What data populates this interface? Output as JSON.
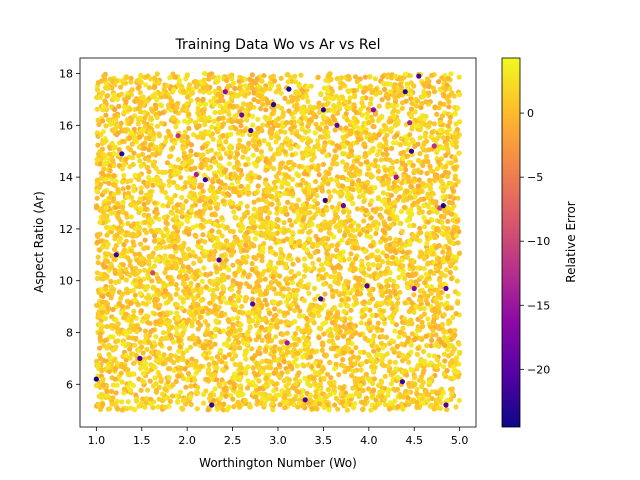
{
  "chart_data": {
    "type": "scatter",
    "title": "Training Data Wo vs Ar vs Rel",
    "xlabel": "Worthington Number (Wo)",
    "ylabel": "Aspect Ratio (Ar)",
    "colorbar_label": "Relative Error",
    "xlim": [
      0.82,
      5.18
    ],
    "ylim": [
      4.35,
      18.6
    ],
    "x_ticks": [
      1.0,
      1.5,
      2.0,
      2.5,
      3.0,
      3.5,
      4.0,
      4.5,
      5.0
    ],
    "x_tick_labels": [
      "1.0",
      "1.5",
      "2.0",
      "2.5",
      "3.0",
      "3.5",
      "4.0",
      "4.5",
      "5.0"
    ],
    "y_ticks": [
      6,
      8,
      10,
      12,
      14,
      16,
      18
    ],
    "y_tick_labels": [
      "6",
      "8",
      "10",
      "12",
      "14",
      "16",
      "18"
    ],
    "color_range": [
      -24.5,
      4.3
    ],
    "colorbar_ticks": [
      0,
      -5,
      -10,
      -15,
      -20
    ],
    "colorbar_tick_labels": [
      "0",
      "−5",
      "−10",
      "−15",
      "−20"
    ],
    "colormap": "plasma",
    "colormap_stops": [
      "#0d0887",
      "#5302a3",
      "#8b0aa5",
      "#b83289",
      "#db5c68",
      "#f48849",
      "#febd2a",
      "#f0f921"
    ],
    "grid": false,
    "approx_point_count": 6000,
    "domain": {
      "wo": [
        1.0,
        5.0
      ],
      "ar": [
        5.0,
        18.0
      ]
    },
    "bulk_error_range": [
      -1.5,
      3.5
    ],
    "outliers": [
      {
        "x": 1.0,
        "y": 6.2,
        "rel": -24
      },
      {
        "x": 1.28,
        "y": 14.9,
        "rel": -23
      },
      {
        "x": 1.22,
        "y": 11.0,
        "rel": -22
      },
      {
        "x": 1.48,
        "y": 7.0,
        "rel": -21
      },
      {
        "x": 1.62,
        "y": 10.3,
        "rel": -10
      },
      {
        "x": 1.9,
        "y": 15.6,
        "rel": -12
      },
      {
        "x": 2.1,
        "y": 14.1,
        "rel": -14
      },
      {
        "x": 2.2,
        "y": 13.9,
        "rel": -22
      },
      {
        "x": 2.27,
        "y": 5.2,
        "rel": -23
      },
      {
        "x": 2.35,
        "y": 10.8,
        "rel": -21
      },
      {
        "x": 2.42,
        "y": 17.3,
        "rel": -16
      },
      {
        "x": 2.6,
        "y": 16.4,
        "rel": -18
      },
      {
        "x": 2.7,
        "y": 15.8,
        "rel": -22
      },
      {
        "x": 2.72,
        "y": 9.1,
        "rel": -20
      },
      {
        "x": 2.95,
        "y": 16.8,
        "rel": -23
      },
      {
        "x": 3.1,
        "y": 7.6,
        "rel": -15
      },
      {
        "x": 3.12,
        "y": 17.4,
        "rel": -24
      },
      {
        "x": 3.3,
        "y": 5.4,
        "rel": -21
      },
      {
        "x": 3.47,
        "y": 9.3,
        "rel": -22
      },
      {
        "x": 3.5,
        "y": 16.6,
        "rel": -23
      },
      {
        "x": 3.52,
        "y": 13.1,
        "rel": -22
      },
      {
        "x": 3.65,
        "y": 16.0,
        "rel": -20
      },
      {
        "x": 3.72,
        "y": 12.9,
        "rel": -19
      },
      {
        "x": 3.98,
        "y": 9.8,
        "rel": -21
      },
      {
        "x": 4.05,
        "y": 16.6,
        "rel": -17
      },
      {
        "x": 4.3,
        "y": 14.0,
        "rel": -15
      },
      {
        "x": 4.37,
        "y": 6.1,
        "rel": -22
      },
      {
        "x": 4.4,
        "y": 17.3,
        "rel": -23
      },
      {
        "x": 4.45,
        "y": 16.1,
        "rel": -14
      },
      {
        "x": 4.47,
        "y": 15.0,
        "rel": -22
      },
      {
        "x": 4.5,
        "y": 9.7,
        "rel": -17
      },
      {
        "x": 4.55,
        "y": 17.9,
        "rel": -21
      },
      {
        "x": 4.72,
        "y": 15.2,
        "rel": -12
      },
      {
        "x": 4.78,
        "y": 12.8,
        "rel": -10
      },
      {
        "x": 4.82,
        "y": 12.9,
        "rel": -24
      },
      {
        "x": 4.85,
        "y": 9.7,
        "rel": -20
      },
      {
        "x": 4.85,
        "y": 5.2,
        "rel": -21
      }
    ]
  }
}
